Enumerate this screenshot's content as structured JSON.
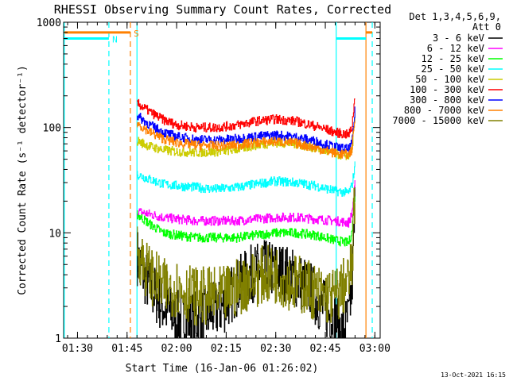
{
  "chart_data": {
    "type": "line",
    "title": "RHESSI Observing Summary Count Rates, Corrected",
    "xlabel": "Start Time (16-Jan-06 01:26:02)",
    "ylabel": "Corrected Count Rate (s⁻¹ detector⁻¹)",
    "y_scale": "log",
    "ylim": [
      1,
      1000
    ],
    "y_ticks": [
      1,
      10,
      100,
      1000
    ],
    "x_range_min": [
      0,
      90
    ],
    "x_ticks": [
      {
        "t": 4,
        "label": "01:30"
      },
      {
        "t": 19,
        "label": "01:45"
      },
      {
        "t": 34,
        "label": "02:00"
      },
      {
        "t": 49,
        "label": "02:15"
      },
      {
        "t": 64,
        "label": "02:30"
      },
      {
        "t": 79,
        "label": "02:45"
      },
      {
        "t": 94,
        "label": "03:00"
      }
    ],
    "grid": false,
    "legend": {
      "placement": "right-outside",
      "header": [
        "Det 1,3,4,5,6,9,",
        "Att 0"
      ]
    },
    "series": [
      {
        "name": "3 - 6 keV",
        "color": "#000000",
        "t": [
          22,
          24,
          26,
          30,
          34,
          40,
          48,
          52,
          56,
          60,
          64,
          68,
          74,
          78,
          82,
          84,
          86,
          87,
          88
        ],
        "values": [
          6,
          4,
          3,
          2,
          1.5,
          1.5,
          2,
          3,
          4,
          4.5,
          4.5,
          4,
          3,
          2,
          1.5,
          1.2,
          1.5,
          3,
          20
        ]
      },
      {
        "name": "6 - 12 keV",
        "color": "#ff00ff",
        "t": [
          22,
          26,
          30,
          34,
          40,
          46,
          52,
          58,
          64,
          70,
          76,
          82,
          86,
          87,
          88
        ],
        "values": [
          16,
          15,
          14,
          13.5,
          13,
          13,
          13,
          13.5,
          14,
          14,
          13.5,
          13,
          12.5,
          15,
          30
        ]
      },
      {
        "name": "12 - 25 keV",
        "color": "#00ff00",
        "t": [
          22,
          26,
          30,
          34,
          40,
          46,
          52,
          58,
          64,
          70,
          76,
          82,
          86,
          87,
          88
        ],
        "values": [
          15,
          12,
          10,
          9.5,
          9,
          9,
          9,
          9.5,
          10,
          10,
          9.5,
          8.5,
          8,
          10,
          25
        ]
      },
      {
        "name": "25 - 50 keV",
        "color": "#00ffff",
        "t": [
          22,
          26,
          30,
          34,
          40,
          46,
          52,
          58,
          64,
          70,
          76,
          82,
          86,
          87,
          88
        ],
        "values": [
          36,
          32,
          29,
          28,
          27,
          26,
          27,
          29,
          31,
          30,
          28,
          25,
          24,
          28,
          45
        ]
      },
      {
        "name": "50 - 100 keV",
        "color": "#cccc00",
        "t": [
          22,
          26,
          30,
          34,
          40,
          46,
          52,
          58,
          64,
          70,
          76,
          82,
          86,
          87,
          88
        ],
        "values": [
          75,
          66,
          61,
          59,
          58,
          59,
          62,
          68,
          72,
          70,
          64,
          56,
          54,
          62,
          130
        ]
      },
      {
        "name": "100 - 300 keV",
        "color": "#ff0000",
        "t": [
          22,
          26,
          30,
          34,
          40,
          46,
          52,
          58,
          64,
          70,
          76,
          82,
          86,
          87,
          88
        ],
        "values": [
          170,
          140,
          118,
          106,
          100,
          100,
          105,
          115,
          120,
          115,
          103,
          90,
          85,
          100,
          210
        ]
      },
      {
        "name": "300 - 800 keV",
        "color": "#0000ff",
        "t": [
          22,
          26,
          30,
          34,
          40,
          46,
          52,
          58,
          64,
          70,
          76,
          82,
          86,
          87,
          88
        ],
        "values": [
          130,
          105,
          90,
          82,
          77,
          76,
          78,
          82,
          85,
          81,
          74,
          65,
          62,
          70,
          150
        ]
      },
      {
        "name": "800 - 7000 keV",
        "color": "#ff8000",
        "t": [
          22,
          26,
          30,
          34,
          40,
          46,
          52,
          58,
          64,
          70,
          76,
          82,
          86,
          87,
          88
        ],
        "values": [
          110,
          90,
          78,
          72,
          68,
          67,
          68,
          72,
          74,
          71,
          64,
          57,
          55,
          62,
          130
        ]
      },
      {
        "name": "7000 - 15000 keV",
        "color": "#808000",
        "t": [
          22,
          24,
          26,
          30,
          34,
          40,
          48,
          52,
          56,
          60,
          64,
          68,
          74,
          78,
          82,
          86,
          87,
          88
        ],
        "values": [
          7,
          5,
          4,
          3,
          3,
          2.5,
          2.5,
          3,
          3.5,
          4,
          4,
          3.5,
          3,
          2.5,
          2.5,
          3.5,
          5,
          25
        ]
      }
    ],
    "annotations": {
      "verticals": [
        {
          "t": 0,
          "color": "#00ffff",
          "style": "solid"
        },
        {
          "t": 13.5,
          "color": "#00ffff",
          "style": "dashed"
        },
        {
          "t": 20,
          "color": "#ff8000",
          "style": "dashed"
        },
        {
          "t": 22,
          "color": "#00ffff",
          "style": "solid"
        },
        {
          "t": 82.3,
          "color": "#00ffff",
          "style": "solid"
        },
        {
          "t": 91.3,
          "color": "#ff8000",
          "style": "solid"
        },
        {
          "t": 93.2,
          "color": "#00ffff",
          "style": "dashed"
        }
      ],
      "bars": [
        {
          "t0": 0,
          "t1": 20,
          "y": 800,
          "color": "#ff8000",
          "label": "S",
          "label_t": 21
        },
        {
          "t0": 0,
          "t1": 13.5,
          "y": 700,
          "color": "#00ffff",
          "label": "N",
          "label_t": 14.5
        },
        {
          "t0": 82.3,
          "t1": 91.3,
          "y": 700,
          "color": "#00ffff"
        },
        {
          "t0": 91.3,
          "t1": 93.2,
          "y": 800,
          "color": "#ff8000"
        }
      ]
    },
    "timestamp": "13-Oct-2021 16:15"
  }
}
